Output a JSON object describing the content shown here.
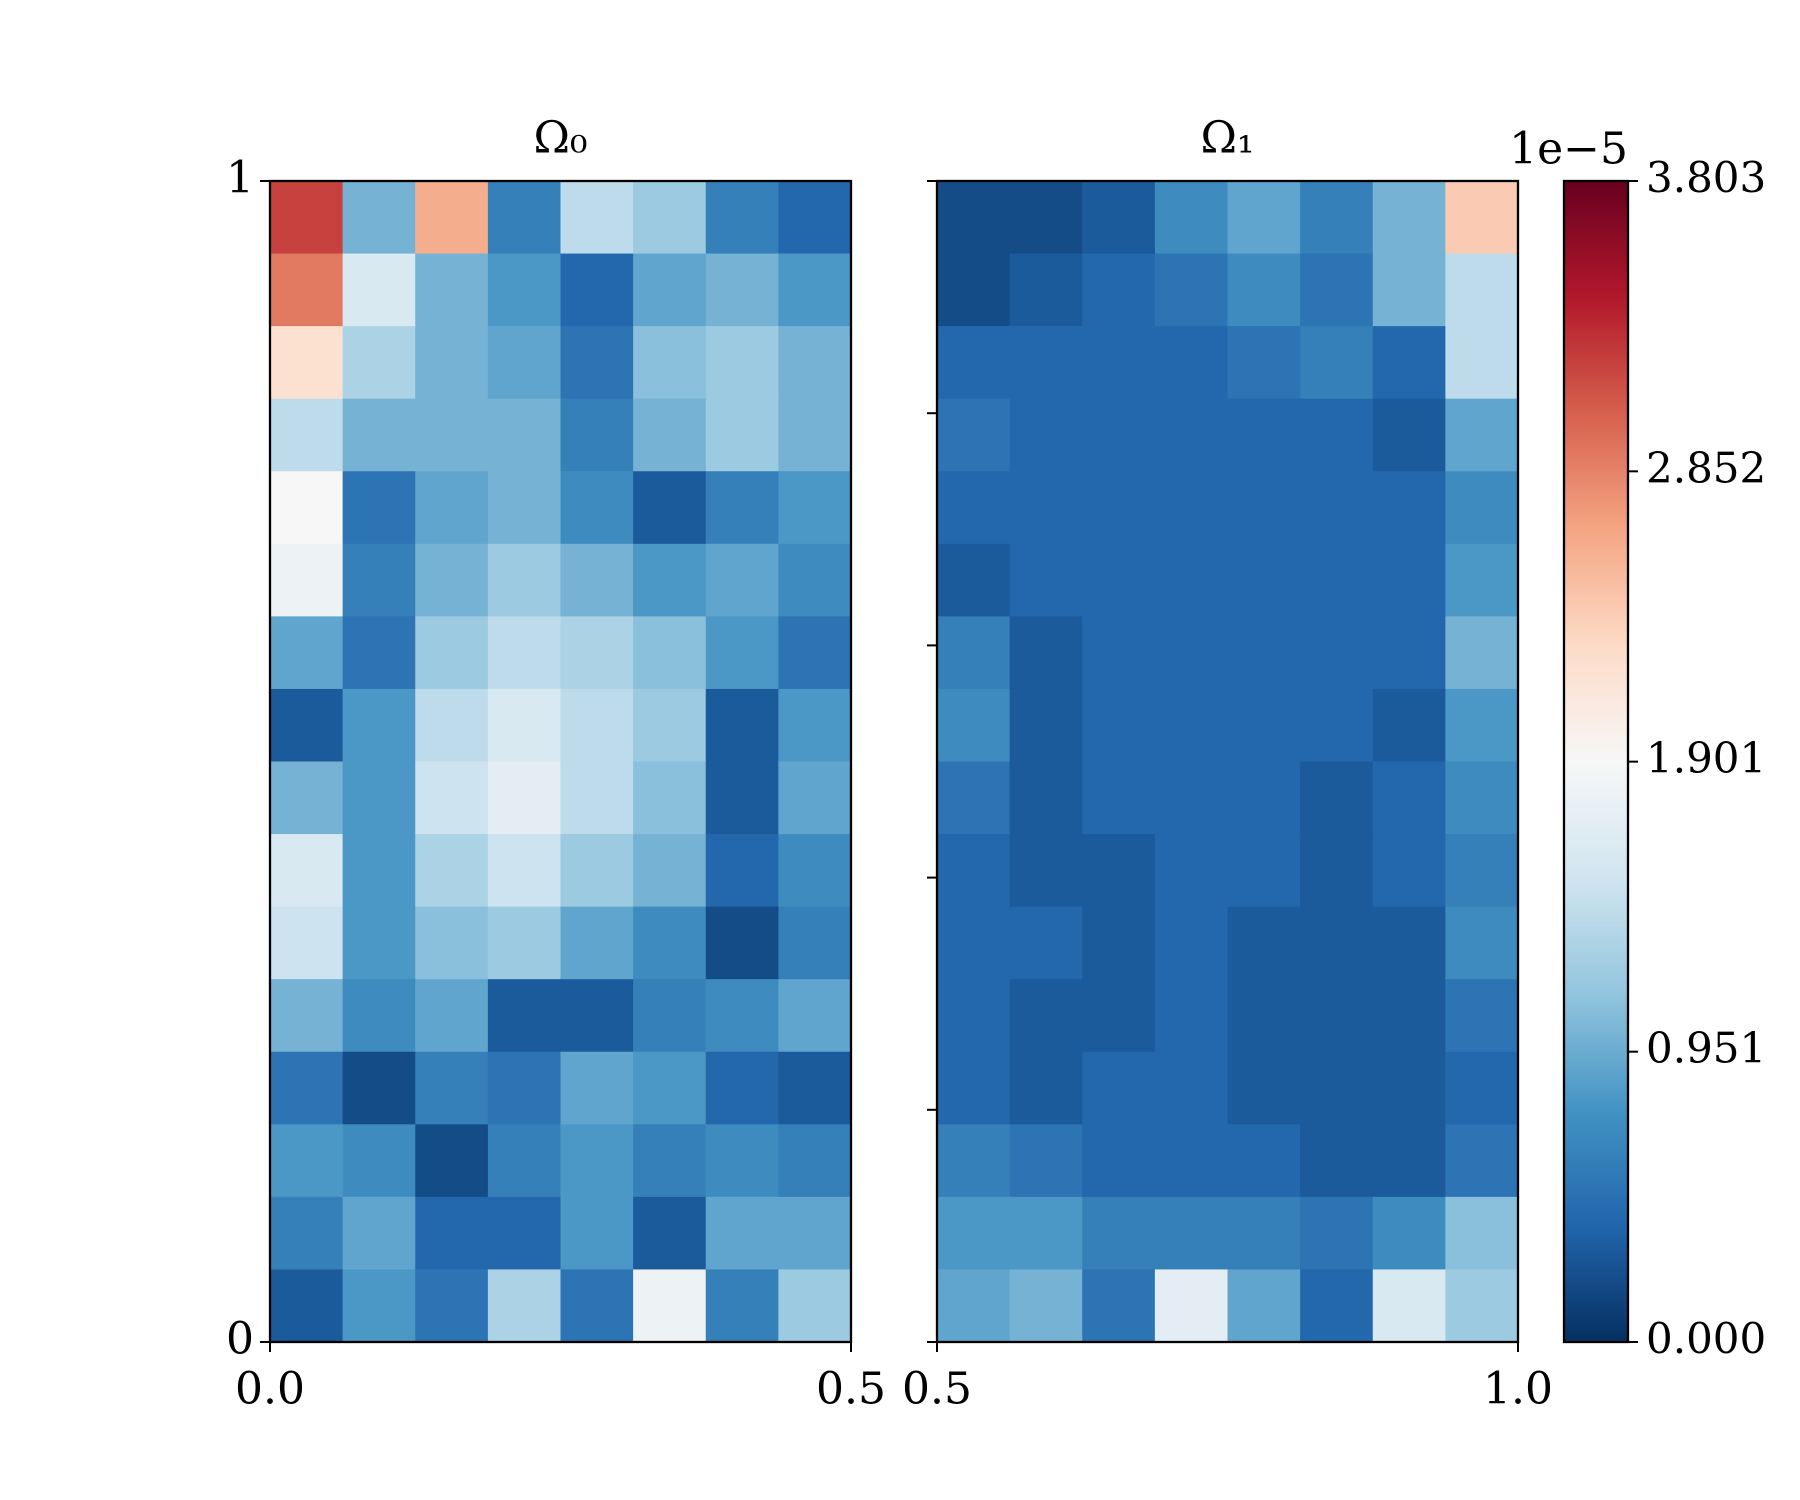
{
  "chart_data": [
    {
      "type": "heatmap",
      "title": "Ω₀",
      "origin": "upper",
      "xlim": [
        0,
        0.5
      ],
      "ylim": [
        0,
        1
      ],
      "xticks": [
        {
          "value": 0,
          "label": "0.0"
        },
        0.5
      ],
      "yticks": [
        0,
        1
      ],
      "ytick_labels": true,
      "z": [
        [
          3.2,
          1.0,
          2.6,
          0.6,
          1.4,
          1.2,
          0.6,
          0.4
        ],
        [
          2.9,
          1.6,
          1.0,
          0.8,
          0.4,
          0.9,
          1.0,
          0.8
        ],
        [
          2.2,
          1.3,
          1.0,
          0.9,
          0.5,
          1.1,
          1.2,
          1.0
        ],
        [
          1.4,
          1.0,
          1.0,
          1.0,
          0.6,
          1.0,
          1.2,
          1.0
        ],
        [
          1.9,
          0.5,
          0.9,
          1.0,
          0.7,
          0.3,
          0.6,
          0.8
        ],
        [
          1.8,
          0.6,
          1.0,
          1.2,
          1.0,
          0.8,
          0.9,
          0.7
        ],
        [
          0.9,
          0.5,
          1.2,
          1.4,
          1.3,
          1.1,
          0.8,
          0.5
        ],
        [
          0.3,
          0.8,
          1.4,
          1.6,
          1.4,
          1.2,
          0.3,
          0.8
        ],
        [
          1.0,
          0.8,
          1.5,
          1.7,
          1.4,
          1.1,
          0.3,
          0.9
        ],
        [
          1.6,
          0.8,
          1.3,
          1.5,
          1.2,
          1.0,
          0.4,
          0.7
        ],
        [
          1.5,
          0.8,
          1.1,
          1.2,
          0.9,
          0.7,
          0.2,
          0.6
        ],
        [
          1.0,
          0.7,
          0.9,
          0.3,
          0.3,
          0.6,
          0.7,
          0.9
        ],
        [
          0.5,
          0.2,
          0.6,
          0.5,
          0.9,
          0.8,
          0.4,
          0.3
        ],
        [
          0.8,
          0.7,
          0.2,
          0.6,
          0.8,
          0.6,
          0.7,
          0.6
        ],
        [
          0.6,
          0.9,
          0.4,
          0.4,
          0.8,
          0.3,
          0.9,
          0.9
        ],
        [
          0.3,
          0.8,
          0.5,
          1.3,
          0.5,
          1.8,
          0.6,
          1.2
        ]
      ]
    },
    {
      "type": "heatmap",
      "title": "Ω₁",
      "origin": "upper",
      "xlim": [
        0.5,
        1
      ],
      "ylim": [
        0,
        1
      ],
      "xticks": [
        0.5,
        {
          "value": 1,
          "label": "1.0"
        }
      ],
      "yticks": [
        0,
        0.2,
        0.4,
        0.6,
        0.8,
        1
      ],
      "ytick_labels": false,
      "z": [
        [
          0.2,
          0.2,
          0.3,
          0.7,
          0.9,
          0.6,
          1.0,
          2.4
        ],
        [
          0.2,
          0.3,
          0.4,
          0.5,
          0.7,
          0.5,
          1.0,
          1.4
        ],
        [
          0.4,
          0.4,
          0.4,
          0.4,
          0.5,
          0.6,
          0.4,
          1.4
        ],
        [
          0.5,
          0.4,
          0.4,
          0.4,
          0.4,
          0.4,
          0.3,
          0.9
        ],
        [
          0.4,
          0.4,
          0.4,
          0.4,
          0.4,
          0.4,
          0.4,
          0.7
        ],
        [
          0.3,
          0.4,
          0.4,
          0.4,
          0.4,
          0.4,
          0.4,
          0.8
        ],
        [
          0.6,
          0.3,
          0.4,
          0.4,
          0.4,
          0.4,
          0.4,
          1.0
        ],
        [
          0.7,
          0.3,
          0.4,
          0.4,
          0.4,
          0.4,
          0.3,
          0.8
        ],
        [
          0.5,
          0.3,
          0.4,
          0.4,
          0.4,
          0.3,
          0.4,
          0.7
        ],
        [
          0.4,
          0.3,
          0.3,
          0.4,
          0.4,
          0.3,
          0.4,
          0.6
        ],
        [
          0.4,
          0.4,
          0.3,
          0.4,
          0.3,
          0.3,
          0.3,
          0.7
        ],
        [
          0.4,
          0.3,
          0.3,
          0.4,
          0.3,
          0.3,
          0.3,
          0.5
        ],
        [
          0.4,
          0.3,
          0.4,
          0.4,
          0.3,
          0.3,
          0.3,
          0.4
        ],
        [
          0.6,
          0.5,
          0.4,
          0.4,
          0.4,
          0.3,
          0.3,
          0.5
        ],
        [
          0.8,
          0.8,
          0.6,
          0.6,
          0.6,
          0.5,
          0.7,
          1.1
        ],
        [
          0.9,
          1.0,
          0.5,
          1.7,
          0.9,
          0.4,
          1.6,
          1.2
        ]
      ]
    },
    {
      "type": "colorbar",
      "offset_label": "1e−5",
      "clim": [
        0,
        3.803
      ],
      "ticks": [
        {
          "value": 0,
          "label": "0.000"
        },
        0.951,
        1.901,
        2.852,
        3.803
      ],
      "colors": [
        "#053061",
        "#2166ac",
        "#4393c3",
        "#92c5de",
        "#d1e5f0",
        "#f7f7f7",
        "#fddbc7",
        "#f4a582",
        "#d6604d",
        "#b2182b",
        "#67001f"
      ]
    }
  ]
}
